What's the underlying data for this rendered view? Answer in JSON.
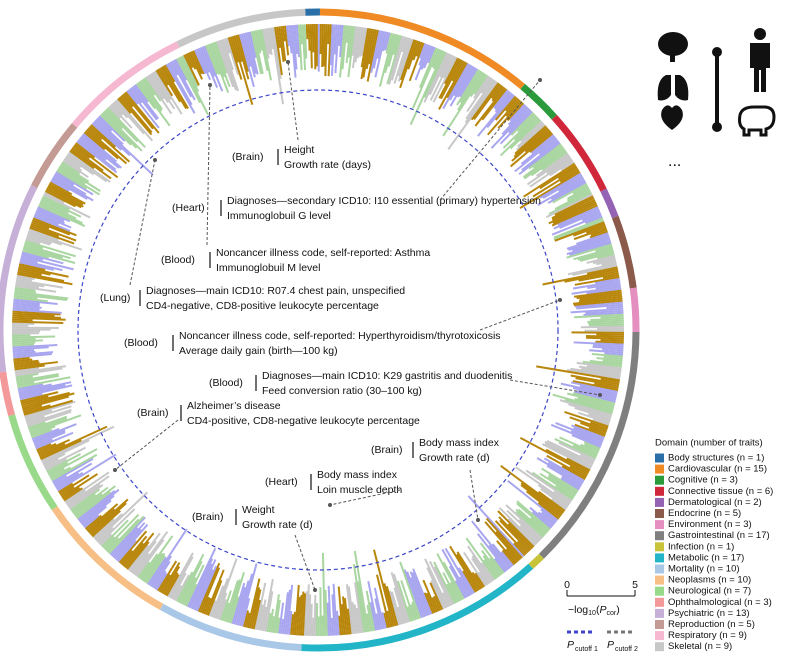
{
  "annotations": [
    {
      "tissue": "(Brain)",
      "human": "Height",
      "pig": "Growth rate (days)"
    },
    {
      "tissue": "(Heart)",
      "human": "Diagnoses—secondary ICD10: I10 essential (primary) hypertension",
      "pig": "Immunoglobuil G level"
    },
    {
      "tissue": "(Blood)",
      "human": "Noncancer illness code, self-reported: Asthma",
      "pig": "Immunoglobuil M level"
    },
    {
      "tissue": "(Lung)",
      "human": "Diagnoses—main ICD10: R07.4 chest pain, unspecified",
      "pig": "CD4-negative, CD8-positive leukocyte percentage"
    },
    {
      "tissue": "(Blood)",
      "human": "Noncancer illness code, self-reported: Hyperthyroidism/thyrotoxicosis",
      "pig": "Average daily gain (birth—100 kg)"
    },
    {
      "tissue": "(Blood)",
      "human": "Diagnoses—main ICD10: K29 gastritis and duodenitis",
      "pig": "Feed conversion ratio (30–100 kg)"
    },
    {
      "tissue": "(Brain)",
      "human": "Alzheimer’s disease",
      "pig": "CD4-positive, CD8-negative leukocyte percentage"
    },
    {
      "tissue": "(Brain)",
      "human": "Body mass index",
      "pig": "Growth rate (d)"
    },
    {
      "tissue": "(Heart)",
      "human": "Body mass index",
      "pig": "Loin muscle depth"
    },
    {
      "tissue": "(Brain)",
      "human": "Weight",
      "pig": "Growth rate (d)"
    }
  ],
  "legend": {
    "title": "Domain (number of traits)",
    "entries": [
      {
        "label": "Body structures (n = 1)",
        "n": 1,
        "color": "#2a6fa8"
      },
      {
        "label": "Cardiovascular (n = 15)",
        "n": 15,
        "color": "#f08a24"
      },
      {
        "label": "Cognitive (n = 3)",
        "n": 3,
        "color": "#2a9a3a"
      },
      {
        "label": "Connective tissue (n = 6)",
        "n": 6,
        "color": "#d0283a"
      },
      {
        "label": "Dermatological (n = 2)",
        "n": 2,
        "color": "#9463b3"
      },
      {
        "label": "Endocrine (n = 5)",
        "n": 5,
        "color": "#8b5a4a"
      },
      {
        "label": "Environment (n = 3)",
        "n": 3,
        "color": "#e58ec0"
      },
      {
        "label": "Gastrointestinal (n = 17)",
        "n": 17,
        "color": "#7f7f7f"
      },
      {
        "label": "Infection (n = 1)",
        "n": 1,
        "color": "#c8c43a"
      },
      {
        "label": "Metabolic (n = 17)",
        "n": 17,
        "color": "#22b5c8"
      },
      {
        "label": "Mortality (n = 10)",
        "n": 10,
        "color": "#a9c7e6"
      },
      {
        "label": "Neoplasms (n = 10)",
        "n": 10,
        "color": "#f7bf85"
      },
      {
        "label": "Neurological (n = 7)",
        "n": 7,
        "color": "#99d98a"
      },
      {
        "label": "Ophthalmological (n = 3)",
        "n": 3,
        "color": "#f49999"
      },
      {
        "label": "Psychiatric (n = 13)",
        "n": 13,
        "color": "#c6b0d8"
      },
      {
        "label": "Reproduction (n = 5)",
        "n": 5,
        "color": "#c49a94"
      },
      {
        "label": "Respiratory (n = 9)",
        "n": 9,
        "color": "#f5b8d0"
      },
      {
        "label": "Skeletal (n = 9)",
        "n": 9,
        "color": "#c7c7c7"
      }
    ]
  },
  "scale": {
    "ticks": [
      0,
      5
    ],
    "label": [
      "−log",
      "10",
      "(",
      "P",
      "cor",
      ")"
    ],
    "cutoffs": [
      {
        "p": "P",
        "sub": "cutoff 1",
        "color": "#3b46c8"
      },
      {
        "p": "P",
        "sub": "cutoff 2",
        "color": "#777777"
      }
    ]
  },
  "more": "..."
}
